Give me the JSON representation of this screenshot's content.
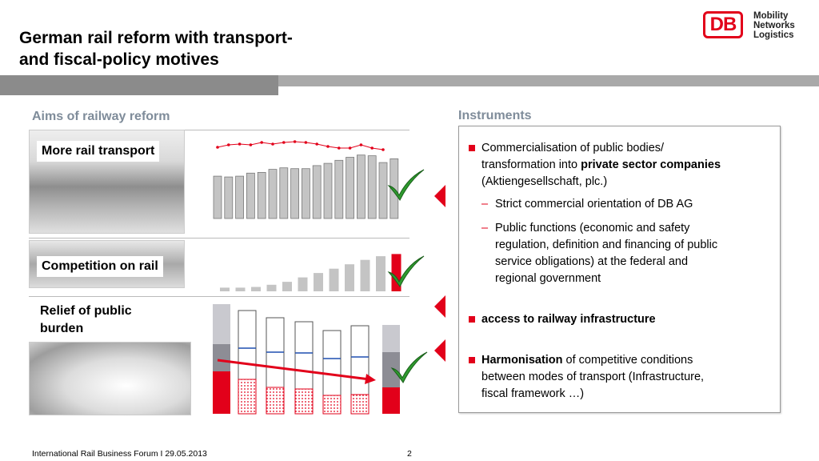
{
  "title_line1": "German rail reform with transport-",
  "title_line2": "and fiscal-policy motives",
  "logo": {
    "mark": "DB",
    "tagline": [
      "Mobility",
      "Networks",
      "Logistics"
    ],
    "color": "#e2001a"
  },
  "left_heading": "Aims of railway reform",
  "right_heading": "Instruments",
  "rows": [
    {
      "label": "More rail transport"
    },
    {
      "label": "Competition on rail"
    },
    {
      "label_line1": "Relief of public",
      "label_line2": "burden"
    }
  ],
  "charts": {
    "transport_bars": [
      56,
      55,
      56,
      60,
      61,
      65,
      67,
      66,
      66,
      70,
      73,
      77,
      81,
      84,
      83,
      74,
      79
    ],
    "transport_line": [
      20,
      17,
      16,
      17,
      14,
      16,
      14,
      13,
      14,
      16,
      19,
      21,
      21,
      17,
      21,
      23
    ],
    "competition_bars": [
      1,
      1,
      1.2,
      1.8,
      2.6,
      3.8,
      5.0,
      6.2,
      7.4,
      8.6,
      9.6,
      10.2
    ],
    "competition_highlight_index": 11
  },
  "instruments": {
    "b1_part1": "Commercialisation of public bodies/",
    "b1_part2": "transformation into ",
    "b1_bold": "private sector companies",
    "b1_part3": "(Aktiengesellschaft, plc.)",
    "sub1": "Strict commercial orientation of DB AG",
    "sub2_l1": "Public functions (economic and safety",
    "sub2_l2": "regulation, definition and financing of public",
    "sub2_l3": "service obligations) at the federal and",
    "sub2_l4": "regional government",
    "b2_bold": "access to railway infrastructure",
    "b3_bold": "Harmonisation",
    "b3_part1": " of competitive conditions",
    "b3_part2": "between modes of transport (Infrastructure,",
    "b3_part3": "fiscal framework …)"
  },
  "footer": {
    "event": "International Rail Business Forum I 29.05.2013",
    "page": "2"
  }
}
